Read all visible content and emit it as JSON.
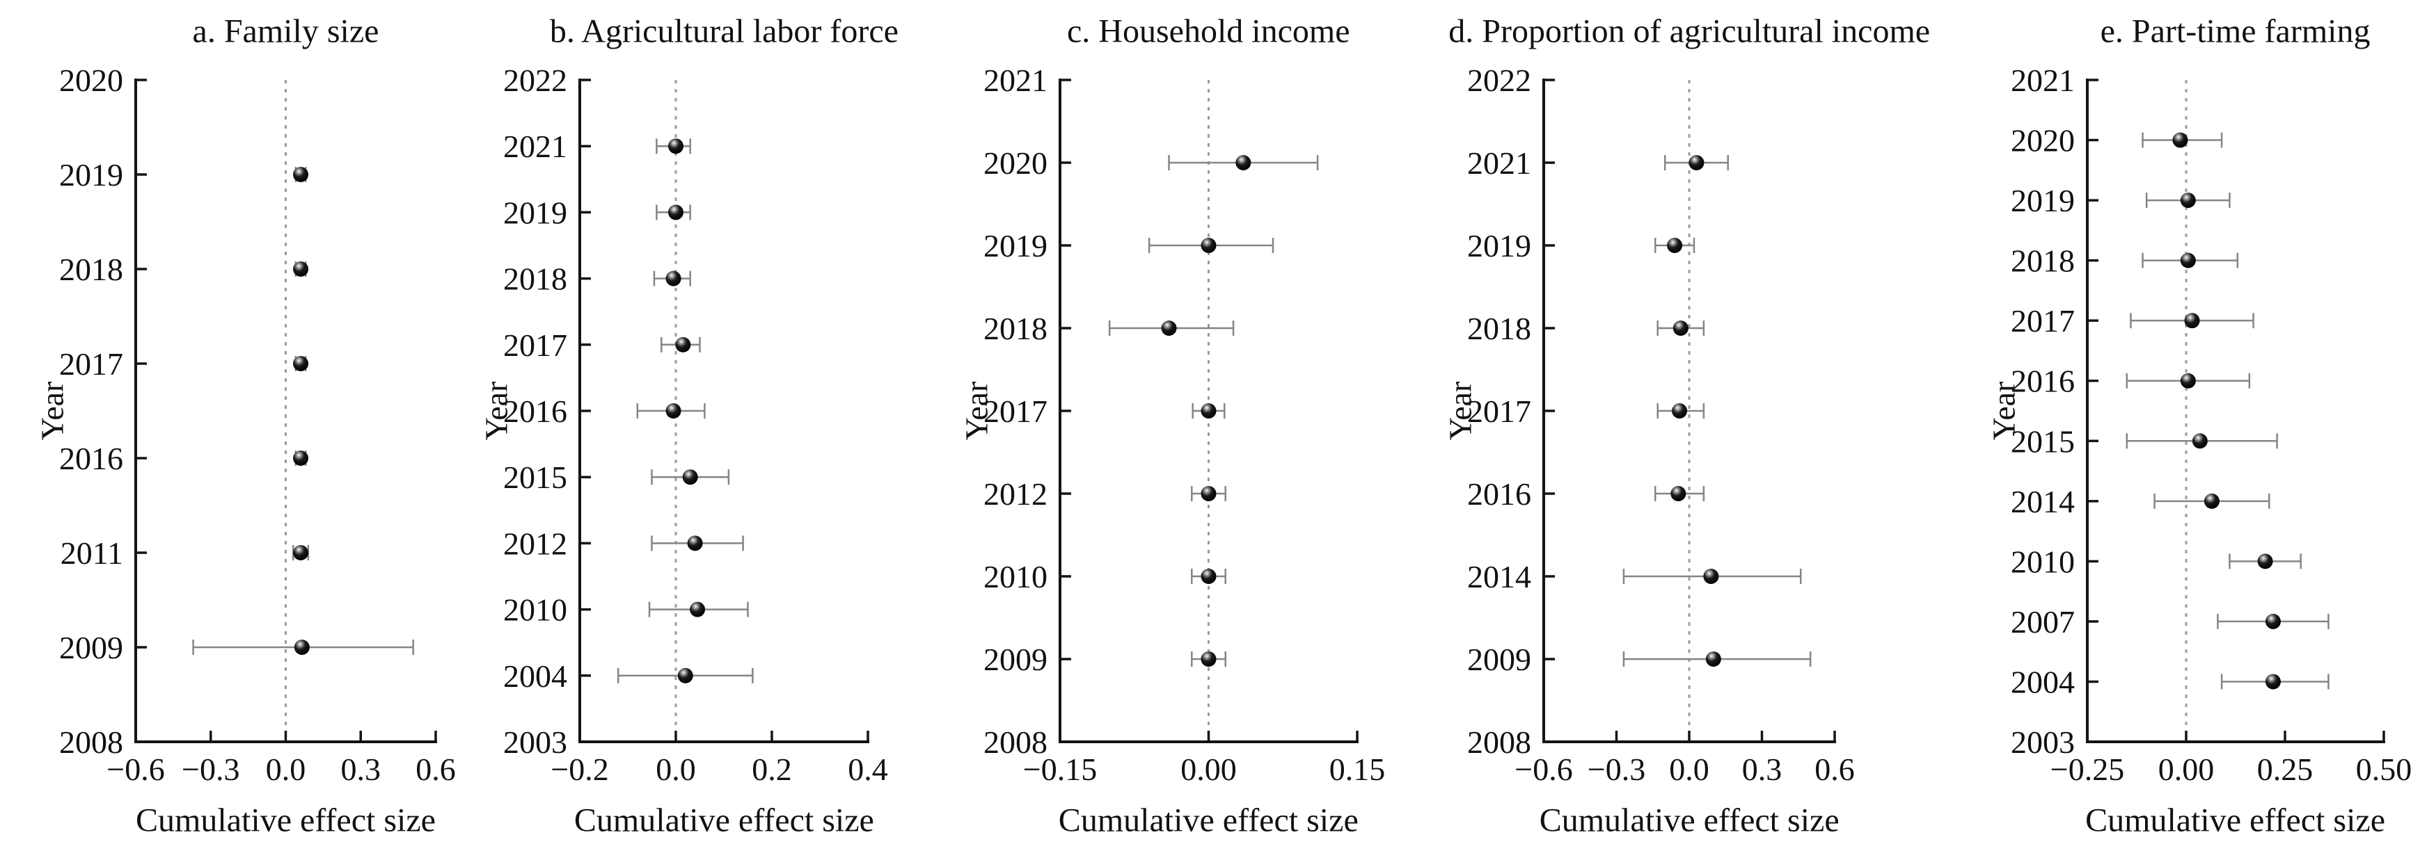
{
  "figure_type": "forest-plot-grid",
  "colors": {
    "background": "#ffffff",
    "axis": "#141414",
    "text": "#111111",
    "error_bar": "#858585",
    "zero_line": "#9c9c9c",
    "marker_core": "#000000",
    "marker_highlight": "#ffffff"
  },
  "chart_data": [
    {
      "id": "a",
      "type": "scatter",
      "title": "a. Family size",
      "xlabel": "Cumulative effect size",
      "ylabel": "Year",
      "xlim": [
        -0.6,
        0.6
      ],
      "x_tick_values": [
        -0.6,
        -0.3,
        0.0,
        0.3,
        0.6
      ],
      "x_tick_labels": [
        "−0.6",
        "−0.3",
        "0.0",
        "0.3",
        "0.6"
      ],
      "y_categories": [
        "2020",
        "2019",
        "2018",
        "2017",
        "2016",
        "2011",
        "2009",
        "2008"
      ],
      "zero_line": 0.0,
      "grid": false,
      "points": [
        {
          "year": "2019",
          "value": 0.06,
          "ci_low": 0.04,
          "ci_high": 0.08
        },
        {
          "year": "2018",
          "value": 0.06,
          "ci_low": 0.04,
          "ci_high": 0.08
        },
        {
          "year": "2017",
          "value": 0.06,
          "ci_low": 0.04,
          "ci_high": 0.08
        },
        {
          "year": "2016",
          "value": 0.06,
          "ci_low": 0.04,
          "ci_high": 0.08
        },
        {
          "year": "2011",
          "value": 0.06,
          "ci_low": 0.03,
          "ci_high": 0.09
        },
        {
          "year": "2009",
          "value": 0.065,
          "ci_low": -0.37,
          "ci_high": 0.51
        }
      ]
    },
    {
      "id": "b",
      "type": "scatter",
      "title": "b. Agricultural labor force",
      "xlabel": "Cumulative effect size",
      "ylabel": "Year",
      "xlim": [
        -0.2,
        0.4
      ],
      "x_tick_values": [
        -0.2,
        0.0,
        0.2,
        0.4
      ],
      "x_tick_labels": [
        "−0.2",
        "0.0",
        "0.2",
        "0.4"
      ],
      "y_categories": [
        "2022",
        "2021",
        "2019",
        "2018",
        "2017",
        "2016",
        "2015",
        "2012",
        "2010",
        "2004",
        "2003"
      ],
      "zero_line": 0.0,
      "grid": false,
      "points": [
        {
          "year": "2021",
          "value": 0.0,
          "ci_low": -0.04,
          "ci_high": 0.03
        },
        {
          "year": "2019",
          "value": 0.0,
          "ci_low": -0.04,
          "ci_high": 0.03
        },
        {
          "year": "2018",
          "value": -0.005,
          "ci_low": -0.045,
          "ci_high": 0.03
        },
        {
          "year": "2017",
          "value": 0.015,
          "ci_low": -0.03,
          "ci_high": 0.05
        },
        {
          "year": "2016",
          "value": -0.005,
          "ci_low": -0.08,
          "ci_high": 0.06
        },
        {
          "year": "2015",
          "value": 0.03,
          "ci_low": -0.05,
          "ci_high": 0.11
        },
        {
          "year": "2012",
          "value": 0.04,
          "ci_low": -0.05,
          "ci_high": 0.14
        },
        {
          "year": "2010",
          "value": 0.045,
          "ci_low": -0.055,
          "ci_high": 0.15
        },
        {
          "year": "2004",
          "value": 0.02,
          "ci_low": -0.12,
          "ci_high": 0.16
        }
      ]
    },
    {
      "id": "c",
      "type": "scatter",
      "title": "c. Household income",
      "xlabel": "Cumulative effect size",
      "ylabel": "Year",
      "xlim": [
        -0.15,
        0.15
      ],
      "x_tick_values": [
        -0.15,
        0.0,
        0.15
      ],
      "x_tick_labels": [
        "−0.15",
        "0.00",
        "0.15"
      ],
      "y_categories": [
        "2021",
        "2020",
        "2019",
        "2018",
        "2017",
        "2012",
        "2010",
        "2009",
        "2008"
      ],
      "zero_line": 0.0,
      "grid": false,
      "points": [
        {
          "year": "2020",
          "value": 0.035,
          "ci_low": -0.04,
          "ci_high": 0.11
        },
        {
          "year": "2019",
          "value": 0.0,
          "ci_low": -0.06,
          "ci_high": 0.065
        },
        {
          "year": "2018",
          "value": -0.04,
          "ci_low": -0.1,
          "ci_high": 0.025
        },
        {
          "year": "2017",
          "value": 0.0,
          "ci_low": -0.016,
          "ci_high": 0.016
        },
        {
          "year": "2012",
          "value": 0.0,
          "ci_low": -0.017,
          "ci_high": 0.017
        },
        {
          "year": "2010",
          "value": 0.0,
          "ci_low": -0.017,
          "ci_high": 0.017
        },
        {
          "year": "2009",
          "value": 0.0,
          "ci_low": -0.017,
          "ci_high": 0.017
        }
      ]
    },
    {
      "id": "d",
      "type": "scatter",
      "title": "d. Proportion of agricultural income",
      "xlabel": "Cumulative effect size",
      "ylabel": "Year",
      "xlim": [
        -0.6,
        0.6
      ],
      "x_tick_values": [
        -0.6,
        -0.3,
        0.0,
        0.3,
        0.6
      ],
      "x_tick_labels": [
        "−0.6",
        "−0.3",
        "0.0",
        "0.3",
        "0.6"
      ],
      "y_categories": [
        "2022",
        "2021",
        "2019",
        "2018",
        "2017",
        "2016",
        "2014",
        "2009",
        "2008"
      ],
      "zero_line": 0.0,
      "grid": false,
      "points": [
        {
          "year": "2021",
          "value": 0.03,
          "ci_low": -0.1,
          "ci_high": 0.16
        },
        {
          "year": "2019",
          "value": -0.06,
          "ci_low": -0.14,
          "ci_high": 0.02
        },
        {
          "year": "2018",
          "value": -0.035,
          "ci_low": -0.13,
          "ci_high": 0.06
        },
        {
          "year": "2017",
          "value": -0.04,
          "ci_low": -0.13,
          "ci_high": 0.06
        },
        {
          "year": "2016",
          "value": -0.045,
          "ci_low": -0.14,
          "ci_high": 0.06
        },
        {
          "year": "2014",
          "value": 0.09,
          "ci_low": -0.27,
          "ci_high": 0.46
        },
        {
          "year": "2009",
          "value": 0.1,
          "ci_low": -0.27,
          "ci_high": 0.5
        }
      ]
    },
    {
      "id": "e",
      "type": "scatter",
      "title": "e. Part-time farming",
      "xlabel": "Cumulative effect size",
      "ylabel": "Year",
      "xlim": [
        -0.25,
        0.5
      ],
      "x_tick_values": [
        -0.25,
        0.0,
        0.25,
        0.5
      ],
      "x_tick_labels": [
        "−0.25",
        "0.00",
        "0.25",
        "0.50"
      ],
      "y_categories": [
        "2021",
        "2020",
        "2019",
        "2018",
        "2017",
        "2016",
        "2015",
        "2014",
        "2010",
        "2007",
        "2004",
        "2003"
      ],
      "zero_line": 0.0,
      "grid": false,
      "points": [
        {
          "year": "2020",
          "value": -0.015,
          "ci_low": -0.11,
          "ci_high": 0.09
        },
        {
          "year": "2019",
          "value": 0.005,
          "ci_low": -0.1,
          "ci_high": 0.11
        },
        {
          "year": "2018",
          "value": 0.005,
          "ci_low": -0.11,
          "ci_high": 0.13
        },
        {
          "year": "2017",
          "value": 0.015,
          "ci_low": -0.14,
          "ci_high": 0.17
        },
        {
          "year": "2016",
          "value": 0.005,
          "ci_low": -0.15,
          "ci_high": 0.16
        },
        {
          "year": "2015",
          "value": 0.035,
          "ci_low": -0.15,
          "ci_high": 0.23
        },
        {
          "year": "2014",
          "value": 0.065,
          "ci_low": -0.08,
          "ci_high": 0.21
        },
        {
          "year": "2010",
          "value": 0.2,
          "ci_low": 0.11,
          "ci_high": 0.29
        },
        {
          "year": "2007",
          "value": 0.22,
          "ci_low": 0.08,
          "ci_high": 0.36
        },
        {
          "year": "2004",
          "value": 0.22,
          "ci_low": 0.09,
          "ci_high": 0.36
        }
      ]
    }
  ]
}
